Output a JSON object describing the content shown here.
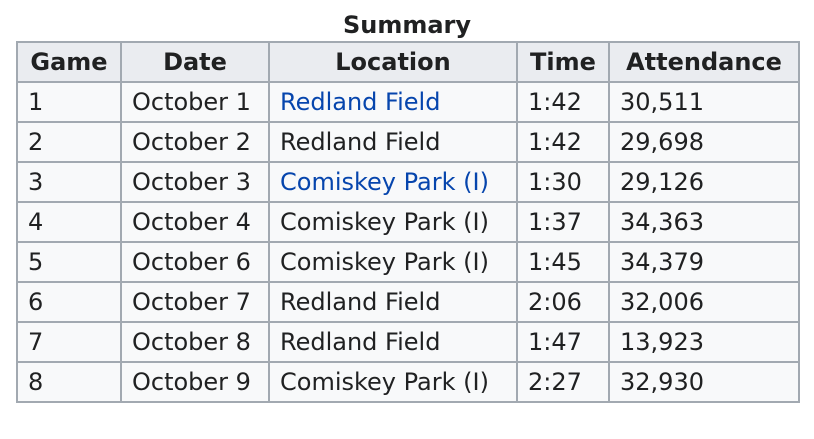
{
  "caption": "Summary",
  "columns": [
    "Game",
    "Date",
    "Location",
    "Time",
    "Attendance"
  ],
  "rows": [
    {
      "game": "1",
      "date": "October 1",
      "location": "Redland Field",
      "location_is_link": true,
      "time": "1:42",
      "attendance": "30,511"
    },
    {
      "game": "2",
      "date": "October 2",
      "location": "Redland Field",
      "location_is_link": false,
      "time": "1:42",
      "attendance": "29,698"
    },
    {
      "game": "3",
      "date": "October 3",
      "location": "Comiskey Park (I)",
      "location_is_link": true,
      "time": "1:30",
      "attendance": "29,126"
    },
    {
      "game": "4",
      "date": "October 4",
      "location": "Comiskey Park (I)",
      "location_is_link": false,
      "time": "1:37",
      "attendance": "34,363"
    },
    {
      "game": "5",
      "date": "October 6",
      "location": "Comiskey Park (I)",
      "location_is_link": false,
      "time": "1:45",
      "attendance": "34,379"
    },
    {
      "game": "6",
      "date": "October 7",
      "location": "Redland Field",
      "location_is_link": false,
      "time": "2:06",
      "attendance": "32,006"
    },
    {
      "game": "7",
      "date": "October 8",
      "location": "Redland Field",
      "location_is_link": false,
      "time": "1:47",
      "attendance": "13,923"
    },
    {
      "game": "8",
      "date": "October 9",
      "location": "Comiskey Park (I)",
      "location_is_link": false,
      "time": "2:27",
      "attendance": "32,930"
    }
  ],
  "colors": {
    "link": "#0645ad",
    "header_bg": "#eaecf0",
    "cell_bg": "#f8f9fa",
    "border": "#a2a9b1",
    "text": "#202122"
  }
}
